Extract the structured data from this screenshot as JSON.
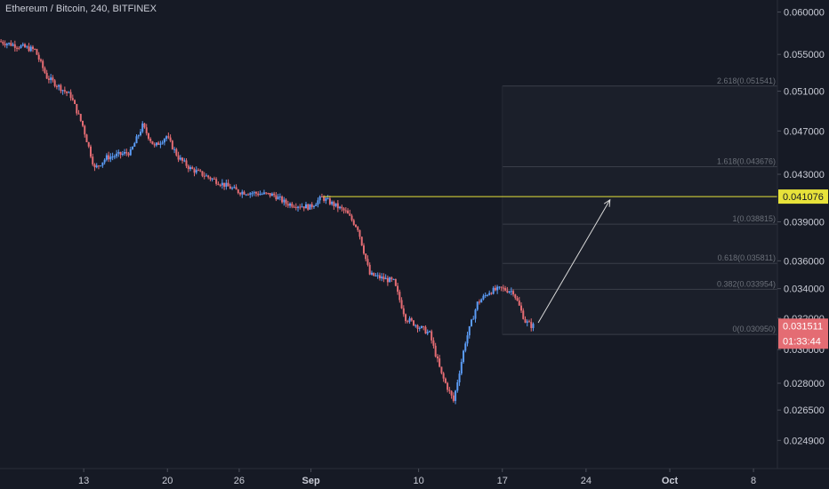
{
  "header": {
    "symbol_title": "Ethereum / Bitcoin, 240, BITFINEX"
  },
  "colors": {
    "background": "#161a25",
    "axis_text": "#c9ccd6",
    "up_candle": "#5b9cf6",
    "down_candle": "#e46c73",
    "horizontal_line": "#e7e23a",
    "fib_line": "#3a3e49",
    "fib_text": "#6b7079",
    "arrow": "#d8d8d8",
    "price_tag": "#e46c73"
  },
  "chart_data": {
    "type": "candlestick",
    "title": "Ethereum / Bitcoin, 240, BITFINEX",
    "x_axis": {
      "unit": "date (2018)",
      "range": [
        "2018-08-06",
        "2018-10-10"
      ],
      "tick_labels": [
        {
          "label": "13",
          "date": "2018-08-13"
        },
        {
          "label": "20",
          "date": "2018-08-20"
        },
        {
          "label": "26",
          "date": "2018-08-26"
        },
        {
          "label": "Sep",
          "date": "2018-09-01",
          "bold": true
        },
        {
          "label": "10",
          "date": "2018-09-10"
        },
        {
          "label": "17",
          "date": "2018-09-17"
        },
        {
          "label": "24",
          "date": "2018-09-24"
        },
        {
          "label": "Oct",
          "date": "2018-10-01",
          "bold": true
        },
        {
          "label": "8",
          "date": "2018-10-08"
        }
      ]
    },
    "y_axis": {
      "scale": "log",
      "range": [
        0.0235,
        0.0615
      ],
      "tick_labels": [
        "0.060000",
        "0.055000",
        "0.051000",
        "0.047000",
        "0.043000",
        "0.039000",
        "0.036000",
        "0.034000",
        "0.032000",
        "0.030000",
        "0.028000",
        "0.026500",
        "0.024900"
      ],
      "ticks": [
        0.06,
        0.055,
        0.051,
        0.047,
        0.043,
        0.039,
        0.036,
        0.034,
        0.032,
        0.03,
        0.028,
        0.0265,
        0.0249
      ]
    },
    "price_path": {
      "description_points": [
        [
          "2018-08-06",
          0.0565
        ],
        [
          "2018-08-09",
          0.0555
        ],
        [
          "2018-08-10",
          0.0525
        ],
        [
          "2018-08-12",
          0.0505
        ],
        [
          "2018-08-13",
          0.0475
        ],
        [
          "2018-08-14",
          0.0435
        ],
        [
          "2018-08-15",
          0.0445
        ],
        [
          "2018-08-17",
          0.045
        ],
        [
          "2018-08-18",
          0.0475
        ],
        [
          "2018-08-19",
          0.0455
        ],
        [
          "2018-08-20",
          0.0465
        ],
        [
          "2018-08-21",
          0.0445
        ],
        [
          "2018-08-22",
          0.0435
        ],
        [
          "2018-08-24",
          0.0425
        ],
        [
          "2018-08-26",
          0.0415
        ],
        [
          "2018-08-29",
          0.0412
        ],
        [
          "2018-08-30",
          0.0405
        ],
        [
          "2018-09-01",
          0.0402
        ],
        [
          "2018-09-02",
          0.041
        ],
        [
          "2018-09-04",
          0.0398
        ],
        [
          "2018-09-05",
          0.0385
        ],
        [
          "2018-09-06",
          0.035
        ],
        [
          "2018-09-08",
          0.0345
        ],
        [
          "2018-09-09",
          0.032
        ],
        [
          "2018-09-10",
          0.0315
        ],
        [
          "2018-09-11",
          0.031
        ],
        [
          "2018-09-12",
          0.0285
        ],
        [
          "2018-09-13",
          0.027
        ],
        [
          "2018-09-14",
          0.0305
        ],
        [
          "2018-09-15",
          0.033
        ],
        [
          "2018-09-16",
          0.0338
        ],
        [
          "2018-09-17",
          0.034
        ],
        [
          "2018-09-18",
          0.0338
        ],
        [
          "2018-09-19",
          0.0318
        ],
        [
          "2018-09-19T12:00",
          0.03151
        ]
      ]
    },
    "horizontal_line": {
      "price": 0.041076,
      "label": "0.041076",
      "start_date": "2018-09-02"
    },
    "fibonacci_extension": {
      "start_date": "2018-09-17",
      "levels": [
        {
          "ratio": "0",
          "price": 0.03095,
          "label": "0(0.030950)"
        },
        {
          "ratio": "0.382",
          "price": 0.033954,
          "label": "0.382(0.033954)"
        },
        {
          "ratio": "0.618",
          "price": 0.035811,
          "label": "0.618(0.035811)"
        },
        {
          "ratio": "1",
          "price": 0.038815,
          "label": "1(0.038815)"
        },
        {
          "ratio": "1.618",
          "price": 0.043676,
          "label": "1.618(0.043676)"
        },
        {
          "ratio": "2.618",
          "price": 0.051541,
          "label": "2.618(0.051541)"
        }
      ]
    },
    "arrow": {
      "from": {
        "date": "2018-09-20",
        "price": 0.0317
      },
      "to": {
        "date": "2018-09-26",
        "price": 0.0408
      }
    },
    "last_price": {
      "value": 0.031511,
      "label": "0.031511",
      "countdown": "01:33:44"
    }
  }
}
